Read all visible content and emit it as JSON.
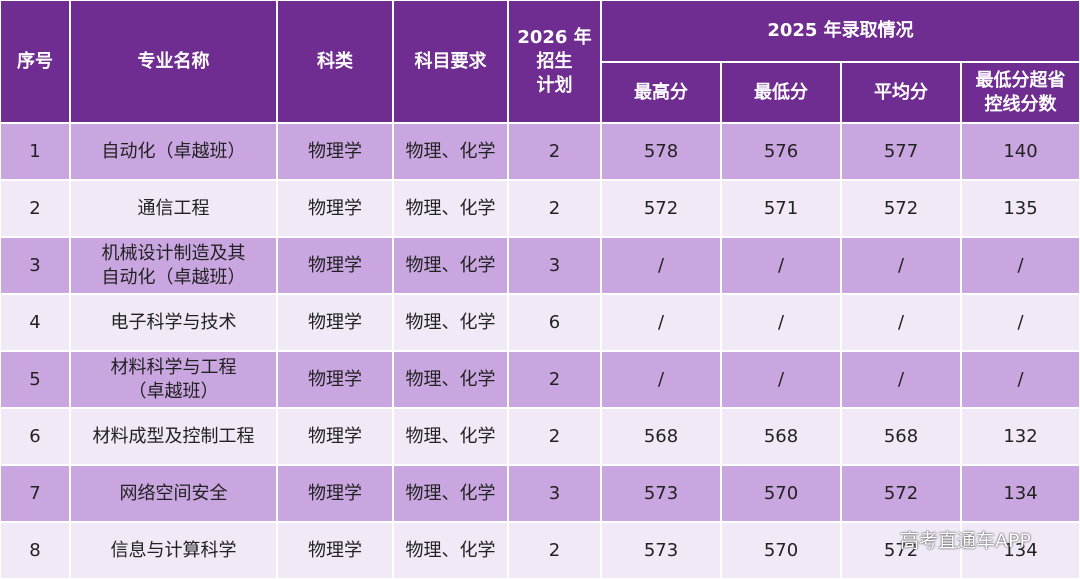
{
  "header": {
    "columns": [
      "序号",
      "专业名称",
      "科类",
      "科目要求",
      [
        "2026 年",
        "招生",
        "计划"
      ]
    ],
    "group": "2025 年录取情况",
    "subcolumns": [
      "最高分",
      "最低分",
      "平均分",
      [
        "最低分超省",
        "控线分数"
      ]
    ]
  },
  "table": {
    "rows": [
      [
        "1",
        "自动化（卓越班）",
        "物理学",
        "物理、化学",
        "2",
        "578",
        "576",
        "577",
        "140"
      ],
      [
        "2",
        "通信工程",
        "物理学",
        "物理、化学",
        "2",
        "572",
        "571",
        "572",
        "135"
      ],
      [
        "3",
        [
          "机械设计制造及其",
          "自动化（卓越班）"
        ],
        "物理学",
        "物理、化学",
        "3",
        "/",
        "/",
        "/",
        "/"
      ],
      [
        "4",
        "电子科学与技术",
        "物理学",
        "物理、化学",
        "6",
        "/",
        "/",
        "/",
        "/"
      ],
      [
        "5",
        [
          "材料科学与工程",
          "（卓越班）"
        ],
        "物理学",
        "物理、化学",
        "2",
        "/",
        "/",
        "/",
        "/"
      ],
      [
        "6",
        "材料成型及控制工程",
        "物理学",
        "物理、化学",
        "2",
        "568",
        "568",
        "568",
        "132"
      ],
      [
        "7",
        "网络空间安全",
        "物理学",
        "物理、化学",
        "3",
        "573",
        "570",
        "572",
        "134"
      ],
      [
        "8",
        "信息与计算科学",
        "物理学",
        "物理、化学",
        "2",
        "573",
        "570",
        "572",
        "134"
      ]
    ]
  },
  "watermark": "高考直通车APP"
}
